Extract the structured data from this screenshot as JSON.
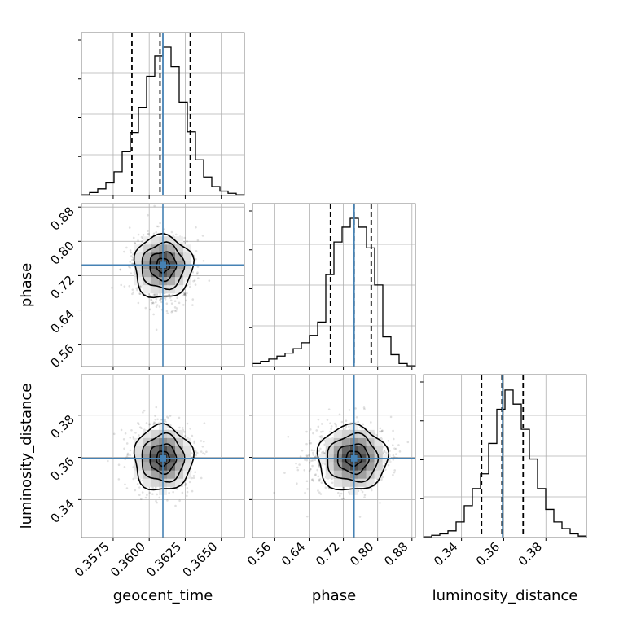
{
  "chart_data": {
    "type": "corner",
    "parameters": [
      "geocent_time",
      "phase",
      "luminosity_distance"
    ],
    "truths": {
      "geocent_time": 0.36095,
      "phase": 0.745,
      "luminosity_distance": 0.3595
    },
    "quantiles": {
      "geocent_time": [
        0.3588,
        0.36075,
        0.36285
      ],
      "phase": [
        0.69,
        0.745,
        0.785
      ],
      "luminosity_distance": [
        0.3495,
        0.3592,
        0.3692
      ]
    },
    "axes": {
      "geocent_time": {
        "range": [
          0.3553,
          0.3666
        ],
        "ticks": [
          "0.3575",
          "0.3600",
          "0.3625",
          "0.3650"
        ]
      },
      "phase": {
        "range": [
          0.508,
          0.888
        ],
        "ticks": [
          "0.56",
          "0.64",
          "0.72",
          "0.80",
          "0.88"
        ]
      },
      "luminosity_distance": {
        "range": [
          0.322,
          0.3992
        ],
        "ticks": [
          "0.34",
          "0.36",
          "0.38"
        ]
      }
    },
    "histograms": {
      "geocent_time": {
        "edges_range": [
          0.3553,
          0.3666
        ],
        "counts": [
          0.005,
          0.02,
          0.045,
          0.085,
          0.16,
          0.295,
          0.425,
          0.595,
          0.805,
          0.94,
          1.0,
          0.87,
          0.63,
          0.43,
          0.24,
          0.125,
          0.06,
          0.03,
          0.015,
          0.005
        ]
      },
      "phase": {
        "edges_range": [
          0.508,
          0.888
        ],
        "counts": [
          0.02,
          0.035,
          0.05,
          0.07,
          0.09,
          0.12,
          0.16,
          0.21,
          0.3,
          0.62,
          0.84,
          0.94,
          1.0,
          0.94,
          0.8,
          0.55,
          0.2,
          0.08,
          0.02,
          0.005
        ]
      },
      "luminosity_distance": {
        "edges_range": [
          0.322,
          0.3992
        ],
        "counts": [
          0.005,
          0.015,
          0.025,
          0.045,
          0.105,
          0.215,
          0.33,
          0.43,
          0.635,
          0.865,
          0.995,
          0.9,
          0.73,
          0.53,
          0.33,
          0.19,
          0.105,
          0.06,
          0.025,
          0.01
        ]
      }
    },
    "grid": true,
    "colors": {
      "truth": "#4682b4",
      "hist": "#000000",
      "points": "#000000"
    }
  }
}
